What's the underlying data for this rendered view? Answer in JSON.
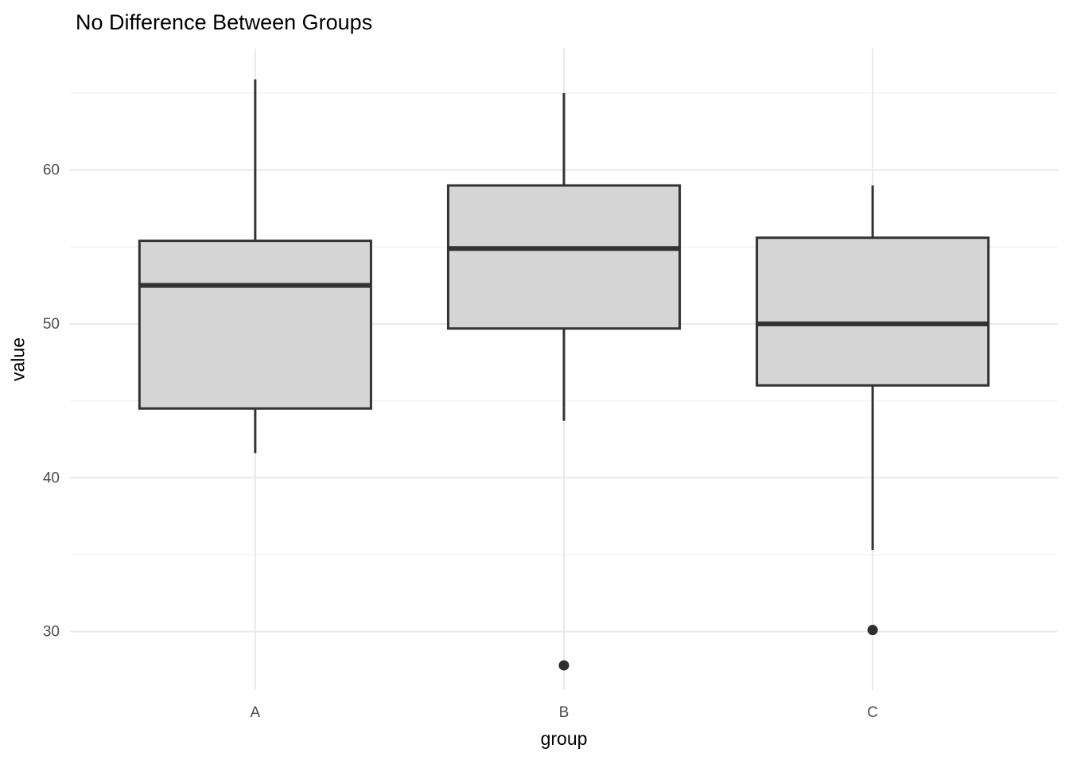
{
  "chart_data": {
    "type": "boxplot",
    "title": "No Difference Between Groups",
    "xlabel": "group",
    "ylabel": "value",
    "categories": [
      "A",
      "B",
      "C"
    ],
    "series": [
      {
        "name": "A",
        "whisker_low": 41.6,
        "q1": 44.5,
        "median": 52.5,
        "q3": 55.4,
        "whisker_high": 65.9,
        "outliers": []
      },
      {
        "name": "B",
        "whisker_low": 43.7,
        "q1": 49.7,
        "median": 54.9,
        "q3": 59.0,
        "whisker_high": 65.0,
        "outliers": [
          27.8
        ]
      },
      {
        "name": "C",
        "whisker_low": 35.3,
        "q1": 46.0,
        "median": 50.0,
        "q3": 55.6,
        "whisker_high": 59.0,
        "outliers": [
          30.1
        ]
      }
    ],
    "y_ticks": [
      30,
      40,
      50,
      60
    ],
    "y_minor_gridlines": [
      35,
      45,
      55,
      65
    ],
    "ylim": [
      26.2,
      67.9
    ],
    "grid": true,
    "legend": "none",
    "colors": {
      "box_fill": "#D5D5D5",
      "box_border": "#333333",
      "median": "#333333",
      "whisker": "#333333",
      "outlier": "#2E2E2E",
      "grid_major": "#E9E9E9",
      "grid_minor": "#F4F4F4",
      "tick_label": "#4D4D4D",
      "background": "#FFFFFF"
    }
  }
}
